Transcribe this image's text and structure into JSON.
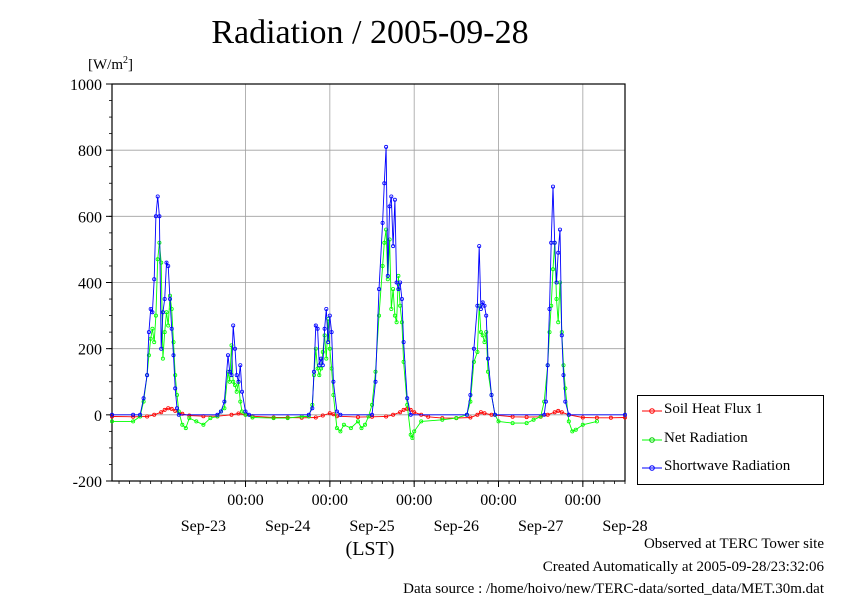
{
  "page": {
    "title": "Radiation / 2005-09-28",
    "unit_label": "[W/m",
    "unit_sup": "2",
    "unit_close": "]",
    "x_axis_label": "(LST)",
    "footer_lines": [
      "Observed at TERC Tower site",
      "Created Automatically at 2005-09-28/23:32:06",
      "Data source : /home/hoivo/new/TERC-data/sorted_data/MET.30m.dat"
    ]
  },
  "chart_data": {
    "type": "line",
    "title": "Radiation / 2005-09-28",
    "ylabel": "[W/m2]",
    "xlabel": "(LST)",
    "ylim": [
      -200,
      1000
    ],
    "yticks": [
      "-200",
      "0",
      "200",
      "400",
      "600",
      "800",
      "1000"
    ],
    "x_unit": "hours since 2005-09-22 00:00 LST",
    "xlim": [
      10,
      156
    ],
    "xtick_time_labels": [
      "00:00",
      "00:00",
      "00:00",
      "00:00",
      "00:00"
    ],
    "xtick_time_positions": [
      48,
      72,
      96,
      120,
      144
    ],
    "xtick_date_labels": [
      "Sep-23",
      "Sep-24",
      "Sep-25",
      "Sep-26",
      "Sep-27",
      "Sep-28"
    ],
    "xtick_date_positions": [
      36,
      60,
      84,
      108,
      132,
      156
    ],
    "grid": true,
    "legend_position": "right",
    "series": [
      {
        "name": "Soil Heat Flux 1",
        "color": "#ff0000",
        "points": [
          [
            10,
            -5
          ],
          [
            16,
            -6
          ],
          [
            20,
            -5
          ],
          [
            22,
            0
          ],
          [
            24,
            8
          ],
          [
            25,
            15
          ],
          [
            26,
            20
          ],
          [
            27,
            18
          ],
          [
            28,
            12
          ],
          [
            30,
            3
          ],
          [
            32,
            -2
          ],
          [
            36,
            -4
          ],
          [
            40,
            -4
          ],
          [
            44,
            0
          ],
          [
            46,
            4
          ],
          [
            48,
            0
          ],
          [
            50,
            -4
          ],
          [
            56,
            -8
          ],
          [
            60,
            -8
          ],
          [
            64,
            -9
          ],
          [
            68,
            -8
          ],
          [
            70,
            -2
          ],
          [
            72,
            5
          ],
          [
            73,
            2
          ],
          [
            74,
            -4
          ],
          [
            80,
            -7
          ],
          [
            84,
            -6
          ],
          [
            88,
            -5
          ],
          [
            90,
            0
          ],
          [
            92,
            8
          ],
          [
            93,
            15
          ],
          [
            94,
            18
          ],
          [
            95,
            15
          ],
          [
            96,
            8
          ],
          [
            98,
            0
          ],
          [
            100,
            -6
          ],
          [
            104,
            -10
          ],
          [
            108,
            -10
          ],
          [
            112,
            -8
          ],
          [
            114,
            0
          ],
          [
            115,
            8
          ],
          [
            116,
            5
          ],
          [
            118,
            0
          ],
          [
            124,
            -6
          ],
          [
            128,
            -7
          ],
          [
            132,
            -6
          ],
          [
            134,
            0
          ],
          [
            136,
            8
          ],
          [
            137,
            12
          ],
          [
            138,
            8
          ],
          [
            140,
            0
          ],
          [
            144,
            -8
          ],
          [
            148,
            -9
          ],
          [
            152,
            -9
          ],
          [
            156,
            -8
          ]
        ]
      },
      {
        "name": "Net Radiation",
        "color": "#00ff00",
        "points": [
          [
            10,
            -20
          ],
          [
            16,
            -20
          ],
          [
            18,
            -5
          ],
          [
            19,
            40
          ],
          [
            20,
            120
          ],
          [
            20.5,
            180
          ],
          [
            21,
            230
          ],
          [
            21.5,
            260
          ],
          [
            22,
            220
          ],
          [
            22.5,
            300
          ],
          [
            23,
            470
          ],
          [
            23.5,
            520
          ],
          [
            24,
            460
          ],
          [
            24.5,
            170
          ],
          [
            25,
            250
          ],
          [
            25.5,
            310
          ],
          [
            26,
            270
          ],
          [
            26.5,
            360
          ],
          [
            27,
            320
          ],
          [
            27.5,
            220
          ],
          [
            28,
            120
          ],
          [
            28.5,
            60
          ],
          [
            29,
            10
          ],
          [
            30,
            -30
          ],
          [
            31,
            -40
          ],
          [
            32,
            -10
          ],
          [
            34,
            -20
          ],
          [
            36,
            -30
          ],
          [
            38,
            -10
          ],
          [
            40,
            -5
          ],
          [
            41,
            10
          ],
          [
            42,
            20
          ],
          [
            43,
            130
          ],
          [
            43.5,
            100
          ],
          [
            44,
            210
          ],
          [
            44.5,
            100
          ],
          [
            45,
            90
          ],
          [
            45.5,
            70
          ],
          [
            46,
            100
          ],
          [
            46.5,
            40
          ],
          [
            47,
            10
          ],
          [
            48,
            0
          ],
          [
            50,
            -8
          ],
          [
            56,
            -10
          ],
          [
            60,
            -10
          ],
          [
            64,
            -5
          ],
          [
            66,
            -5
          ],
          [
            67,
            30
          ],
          [
            67.5,
            120
          ],
          [
            68,
            200
          ],
          [
            68.5,
            140
          ],
          [
            69,
            120
          ],
          [
            69.5,
            140
          ],
          [
            70,
            190
          ],
          [
            70.5,
            240
          ],
          [
            71,
            170
          ],
          [
            71.5,
            290
          ],
          [
            72,
            200
          ],
          [
            72.5,
            140
          ],
          [
            73,
            60
          ],
          [
            74,
            -40
          ],
          [
            75,
            -50
          ],
          [
            76,
            -30
          ],
          [
            78,
            -40
          ],
          [
            80,
            -20
          ],
          [
            81,
            -40
          ],
          [
            82,
            -30
          ],
          [
            83,
            -5
          ],
          [
            84,
            30
          ],
          [
            85,
            130
          ],
          [
            86,
            300
          ],
          [
            87,
            450
          ],
          [
            87.5,
            520
          ],
          [
            88,
            560
          ],
          [
            88.5,
            410
          ],
          [
            89,
            530
          ],
          [
            89.5,
            320
          ],
          [
            90,
            380
          ],
          [
            90.5,
            300
          ],
          [
            91,
            280
          ],
          [
            91.5,
            420
          ],
          [
            92,
            330
          ],
          [
            92.5,
            280
          ],
          [
            93,
            160
          ],
          [
            94,
            30
          ],
          [
            95,
            -60
          ],
          [
            95.5,
            -70
          ],
          [
            96,
            -50
          ],
          [
            98,
            -20
          ],
          [
            104,
            -15
          ],
          [
            108,
            -10
          ],
          [
            111,
            0
          ],
          [
            112,
            40
          ],
          [
            113,
            160
          ],
          [
            114,
            190
          ],
          [
            114.5,
            330
          ],
          [
            115,
            250
          ],
          [
            115.5,
            240
          ],
          [
            116,
            220
          ],
          [
            116.5,
            250
          ],
          [
            117,
            130
          ],
          [
            118,
            60
          ],
          [
            119,
            0
          ],
          [
            120,
            -20
          ],
          [
            124,
            -25
          ],
          [
            128,
            -25
          ],
          [
            130,
            -15
          ],
          [
            132,
            -5
          ],
          [
            133,
            40
          ],
          [
            134,
            150
          ],
          [
            134.5,
            250
          ],
          [
            135,
            330
          ],
          [
            135.5,
            440
          ],
          [
            136,
            520
          ],
          [
            136.5,
            350
          ],
          [
            137,
            280
          ],
          [
            137.5,
            400
          ],
          [
            138,
            250
          ],
          [
            138.5,
            150
          ],
          [
            139,
            80
          ],
          [
            140,
            -20
          ],
          [
            141,
            -50
          ],
          [
            142,
            -45
          ],
          [
            144,
            -30
          ],
          [
            148,
            -20
          ]
        ]
      },
      {
        "name": "Shortwave Radiation",
        "color": "#0000ff",
        "points": [
          [
            10,
            0
          ],
          [
            16,
            0
          ],
          [
            18,
            0
          ],
          [
            19,
            50
          ],
          [
            20,
            120
          ],
          [
            20.5,
            250
          ],
          [
            21,
            320
          ],
          [
            21.5,
            310
          ],
          [
            22,
            410
          ],
          [
            22.5,
            600
          ],
          [
            23,
            660
          ],
          [
            23.5,
            600
          ],
          [
            24,
            200
          ],
          [
            24.5,
            310
          ],
          [
            25,
            350
          ],
          [
            25.5,
            460
          ],
          [
            26,
            450
          ],
          [
            26.5,
            350
          ],
          [
            27,
            260
          ],
          [
            27.5,
            180
          ],
          [
            28,
            80
          ],
          [
            28.5,
            20
          ],
          [
            29,
            0
          ],
          [
            40,
            0
          ],
          [
            41,
            10
          ],
          [
            42,
            40
          ],
          [
            43,
            180
          ],
          [
            43.5,
            130
          ],
          [
            44,
            120
          ],
          [
            44.5,
            270
          ],
          [
            45,
            200
          ],
          [
            45.5,
            120
          ],
          [
            46,
            100
          ],
          [
            46.5,
            150
          ],
          [
            47,
            70
          ],
          [
            48,
            10
          ],
          [
            49,
            0
          ],
          [
            66,
            0
          ],
          [
            67,
            20
          ],
          [
            67.5,
            130
          ],
          [
            68,
            270
          ],
          [
            68.5,
            260
          ],
          [
            69,
            150
          ],
          [
            69.5,
            170
          ],
          [
            70,
            150
          ],
          [
            70.5,
            260
          ],
          [
            71,
            320
          ],
          [
            71.5,
            220
          ],
          [
            72,
            300
          ],
          [
            72.5,
            250
          ],
          [
            73,
            100
          ],
          [
            74,
            10
          ],
          [
            75,
            0
          ],
          [
            84,
            0
          ],
          [
            85,
            100
          ],
          [
            86,
            380
          ],
          [
            87,
            580
          ],
          [
            87.5,
            700
          ],
          [
            88,
            810
          ],
          [
            88.5,
            420
          ],
          [
            89,
            630
          ],
          [
            89.5,
            660
          ],
          [
            90,
            510
          ],
          [
            90.5,
            650
          ],
          [
            91,
            400
          ],
          [
            91.5,
            380
          ],
          [
            92,
            400
          ],
          [
            92.5,
            350
          ],
          [
            93,
            220
          ],
          [
            94,
            50
          ],
          [
            95,
            0
          ],
          [
            111,
            0
          ],
          [
            112,
            60
          ],
          [
            113,
            200
          ],
          [
            114,
            330
          ],
          [
            114.5,
            510
          ],
          [
            115,
            320
          ],
          [
            115.5,
            340
          ],
          [
            116,
            330
          ],
          [
            116.5,
            300
          ],
          [
            117,
            170
          ],
          [
            118,
            60
          ],
          [
            119,
            0
          ],
          [
            133,
            0
          ],
          [
            133.5,
            40
          ],
          [
            134,
            150
          ],
          [
            134.5,
            320
          ],
          [
            135,
            520
          ],
          [
            135.5,
            690
          ],
          [
            136,
            520
          ],
          [
            136.5,
            400
          ],
          [
            137,
            490
          ],
          [
            137.5,
            560
          ],
          [
            138,
            240
          ],
          [
            138.5,
            120
          ],
          [
            139,
            40
          ],
          [
            140,
            0
          ],
          [
            156,
            0
          ]
        ]
      }
    ]
  }
}
